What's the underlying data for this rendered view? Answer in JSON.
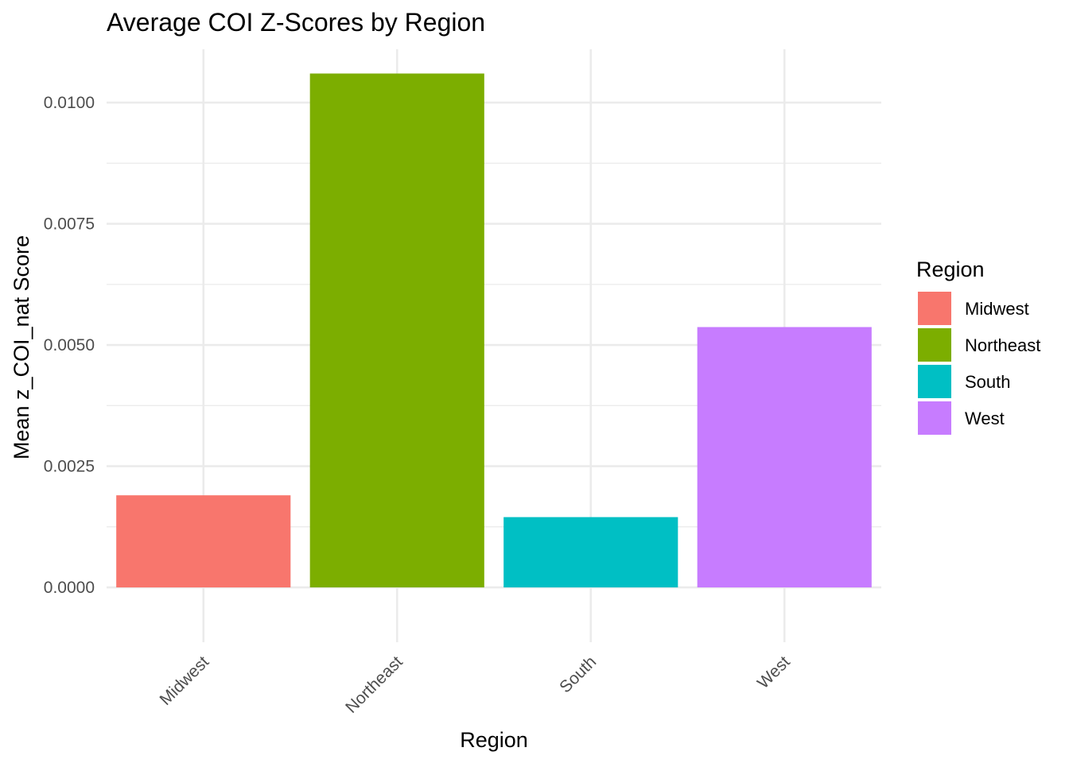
{
  "chart_data": {
    "type": "bar",
    "title": "Average COI Z-Scores by Region",
    "xlabel": "Region",
    "ylabel": "Mean z_COI_nat Score",
    "categories": [
      "Midwest",
      "Northeast",
      "South",
      "West"
    ],
    "values": [
      0.0019,
      0.0106,
      0.00145,
      0.00537
    ],
    "colors": [
      "#F8766D",
      "#7CAE00",
      "#00BFC4",
      "#C77CFF"
    ],
    "ylim": [
      -0.00113,
      0.0111
    ],
    "yticks": [
      0.0,
      0.0025,
      0.005,
      0.0075,
      0.01
    ],
    "ytick_labels": [
      "0.0000",
      "0.0025",
      "0.0050",
      "0.0075",
      "0.0100"
    ],
    "grid": true,
    "legend": {
      "title": "Region",
      "position": "right",
      "entries": [
        "Midwest",
        "Northeast",
        "South",
        "West"
      ]
    }
  }
}
